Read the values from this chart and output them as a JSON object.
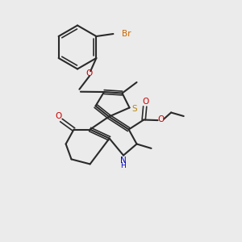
{
  "bg_color": "#ebebeb",
  "bond_color": "#2a2a2a",
  "S_color": "#b8860b",
  "N_color": "#0000cc",
  "O_color": "#cc0000",
  "Br_color": "#cc6600",
  "figsize": [
    3.0,
    3.0
  ],
  "dpi": 100,
  "xlim": [
    0,
    10
  ],
  "ylim": [
    0,
    10
  ]
}
